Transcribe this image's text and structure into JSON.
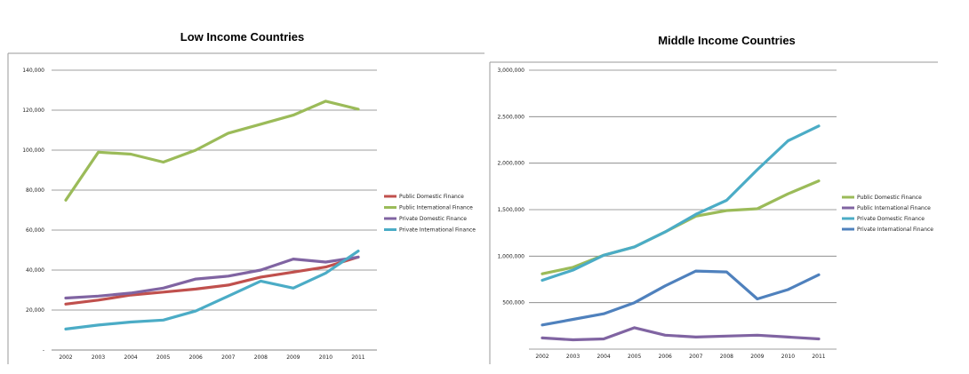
{
  "chart_data": [
    {
      "type": "line",
      "title": "Low Income Countries",
      "xlabel": "",
      "ylabel": "",
      "categories": [
        "2002",
        "2003",
        "2004",
        "2005",
        "2006",
        "2007",
        "2008",
        "2009",
        "2010",
        "2011"
      ],
      "ylim": [
        0,
        140000
      ],
      "yticks": [
        0,
        20000,
        40000,
        60000,
        80000,
        100000,
        120000,
        140000
      ],
      "ytick_labels": [
        "-",
        "20,000",
        "40,000",
        "60,000",
        "80,000",
        "100,000",
        "120,000",
        "140,000"
      ],
      "grid": true,
      "legend_position": "right",
      "series": [
        {
          "name": "Public Domestic Finance",
          "color": "#C0504D",
          "values": [
            23000,
            25000,
            27500,
            29000,
            30500,
            32500,
            36500,
            39000,
            41500,
            46500
          ]
        },
        {
          "name": "Public International Finance",
          "color": "#9BBB59",
          "values": [
            75000,
            99000,
            98000,
            94000,
            100000,
            108500,
            113000,
            117500,
            124500,
            120500
          ]
        },
        {
          "name": "Private Domestic Finance",
          "color": "#8064A2",
          "values": [
            26000,
            27000,
            28500,
            31000,
            35500,
            37000,
            40000,
            45500,
            44000,
            46500
          ]
        },
        {
          "name": "Private International Finance",
          "color": "#4BACC6",
          "values": [
            10500,
            12500,
            14000,
            15000,
            19500,
            27000,
            34500,
            31000,
            38500,
            49500
          ]
        }
      ]
    },
    {
      "type": "line",
      "title": "Middle Income Countries",
      "xlabel": "",
      "ylabel": "",
      "categories": [
        "2002",
        "2003",
        "2004",
        "2005",
        "2006",
        "2007",
        "2008",
        "2009",
        "2010",
        "2011"
      ],
      "ylim": [
        0,
        3000000
      ],
      "yticks": [
        500000,
        1000000,
        1500000,
        2000000,
        2500000,
        3000000
      ],
      "ytick_labels": [
        "500,000",
        "1,000,000",
        "1,500,000",
        "2,000,000",
        "2,500,000",
        "3,000,000"
      ],
      "grid": true,
      "legend_position": "right",
      "series": [
        {
          "name": "Public Domestic Finance",
          "color": "#9BBB59",
          "values": [
            810000,
            880000,
            1010000,
            1100000,
            1260000,
            1430000,
            1490000,
            1510000,
            1670000,
            1810000
          ]
        },
        {
          "name": "Public International Finance",
          "color": "#8064A2",
          "values": [
            120000,
            100000,
            110000,
            230000,
            150000,
            130000,
            140000,
            150000,
            130000,
            110000
          ]
        },
        {
          "name": "Private Domestic Finance",
          "color": "#4BACC6",
          "values": [
            740000,
            850000,
            1010000,
            1100000,
            1260000,
            1450000,
            1600000,
            1930000,
            2240000,
            2400000
          ]
        },
        {
          "name": "Private International Finance",
          "color": "#4F81BD",
          "values": [
            260000,
            320000,
            380000,
            500000,
            680000,
            840000,
            830000,
            540000,
            640000,
            800000
          ]
        }
      ]
    }
  ]
}
